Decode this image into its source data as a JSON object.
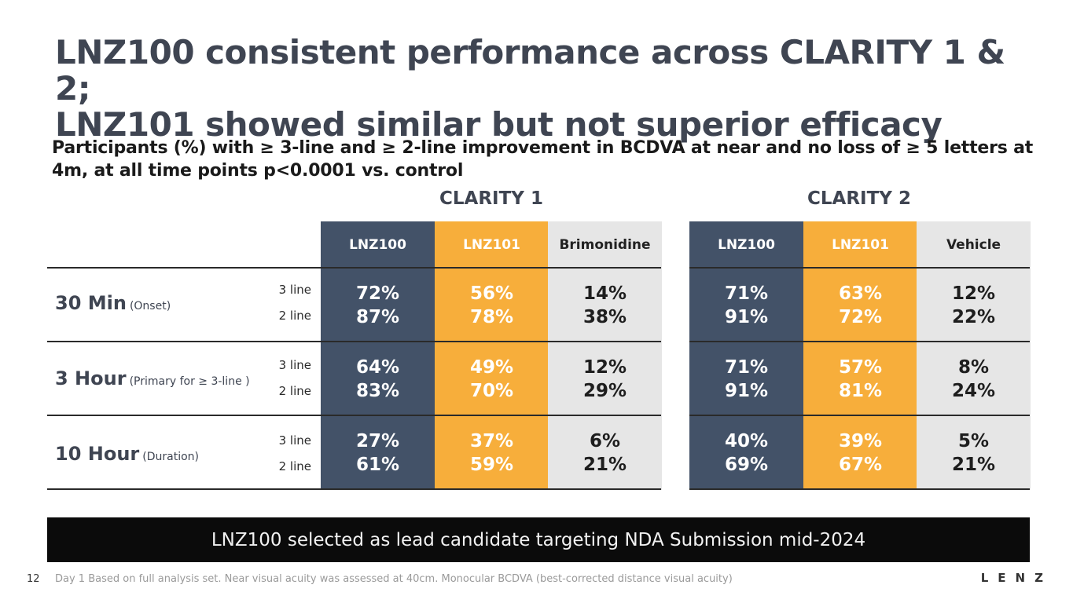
{
  "title": {
    "line1": "LNZ100 consistent performance across CLARITY 1 & 2;",
    "line2": "LNZ101 showed similar but not superior efficacy"
  },
  "subtitle": "Participants (%) with ≥ 3-line and ≥ 2-line improvement in BCDVA at near and no loss of ≥ 5 letters at 4m, at all time points p<0.0001 vs. control",
  "groups": [
    {
      "name": "CLARITY 1",
      "columns": [
        "LNZ100",
        "LNZ101",
        "Brimonidine"
      ]
    },
    {
      "name": "CLARITY 2",
      "columns": [
        "LNZ100",
        "LNZ101",
        "Vehicle"
      ]
    }
  ],
  "line_labels": {
    "three": "3 line",
    "two": "2 line"
  },
  "rows": [
    {
      "label": "30 Min",
      "sub": "(Onset)",
      "clarity1": [
        [
          "72%",
          "87%"
        ],
        [
          "56%",
          "78%"
        ],
        [
          "14%",
          "38%"
        ]
      ],
      "clarity2": [
        [
          "71%",
          "91%"
        ],
        [
          "63%",
          "72%"
        ],
        [
          "12%",
          "22%"
        ]
      ]
    },
    {
      "label": "3 Hour",
      "sub": "(Primary for ≥ 3-line )",
      "clarity1": [
        [
          "64%",
          "83%"
        ],
        [
          "49%",
          "70%"
        ],
        [
          "12%",
          "29%"
        ]
      ],
      "clarity2": [
        [
          "71%",
          "91%"
        ],
        [
          "57%",
          "81%"
        ],
        [
          "8%",
          "24%"
        ]
      ]
    },
    {
      "label": "10 Hour",
      "sub": "(Duration)",
      "clarity1": [
        [
          "27%",
          "61%"
        ],
        [
          "37%",
          "59%"
        ],
        [
          "6%",
          "21%"
        ]
      ],
      "clarity2": [
        [
          "40%",
          "69%"
        ],
        [
          "39%",
          "67%"
        ],
        [
          "5%",
          "21%"
        ]
      ]
    }
  ],
  "banner": "LNZ100 selected as lead candidate targeting NDA Submission mid-2024",
  "page_number": "12",
  "footnote": "Day 1 Based on full analysis set. Near visual acuity was assessed at 40cm. Monocular BCDVA (best-corrected distance visual acuity)",
  "logo": "LENZ",
  "colors": {
    "navy": "#435268",
    "orange": "#f7ae3b",
    "gray": "#e6e6e6",
    "banner": "#0b0b0b"
  }
}
